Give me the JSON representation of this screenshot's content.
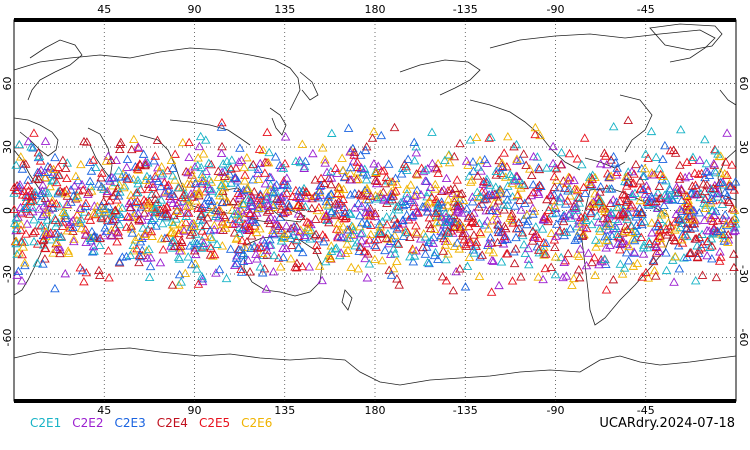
{
  "chart_data": {
    "type": "scatter",
    "projection": "equirectangular, centered on 180",
    "x_range": [
      0,
      360
    ],
    "y_range": [
      -90,
      90
    ],
    "x_ticks": [
      "45",
      "90",
      "135",
      "180",
      "-135",
      "-90",
      "-45"
    ],
    "y_ticks_left": [
      "60",
      "30",
      "0",
      "-30",
      "-60"
    ],
    "y_ticks_right": [
      "60",
      "30",
      "0",
      "-30",
      "-60"
    ],
    "grid": "dotted",
    "marker": "open-triangle",
    "observation_lat_band": [
      -45,
      45
    ],
    "series": [
      {
        "name": "C2E1",
        "color": "#17b3c6"
      },
      {
        "name": "C2E2",
        "color": "#9b1fd0"
      },
      {
        "name": "C2E3",
        "color": "#1a63e0"
      },
      {
        "name": "C2E4",
        "color": "#c0101e"
      },
      {
        "name": "C2E5",
        "color": "#e8101c"
      },
      {
        "name": "C2E6",
        "color": "#f0b300"
      }
    ]
  },
  "stamp": "UCARdry.2024-07-18"
}
